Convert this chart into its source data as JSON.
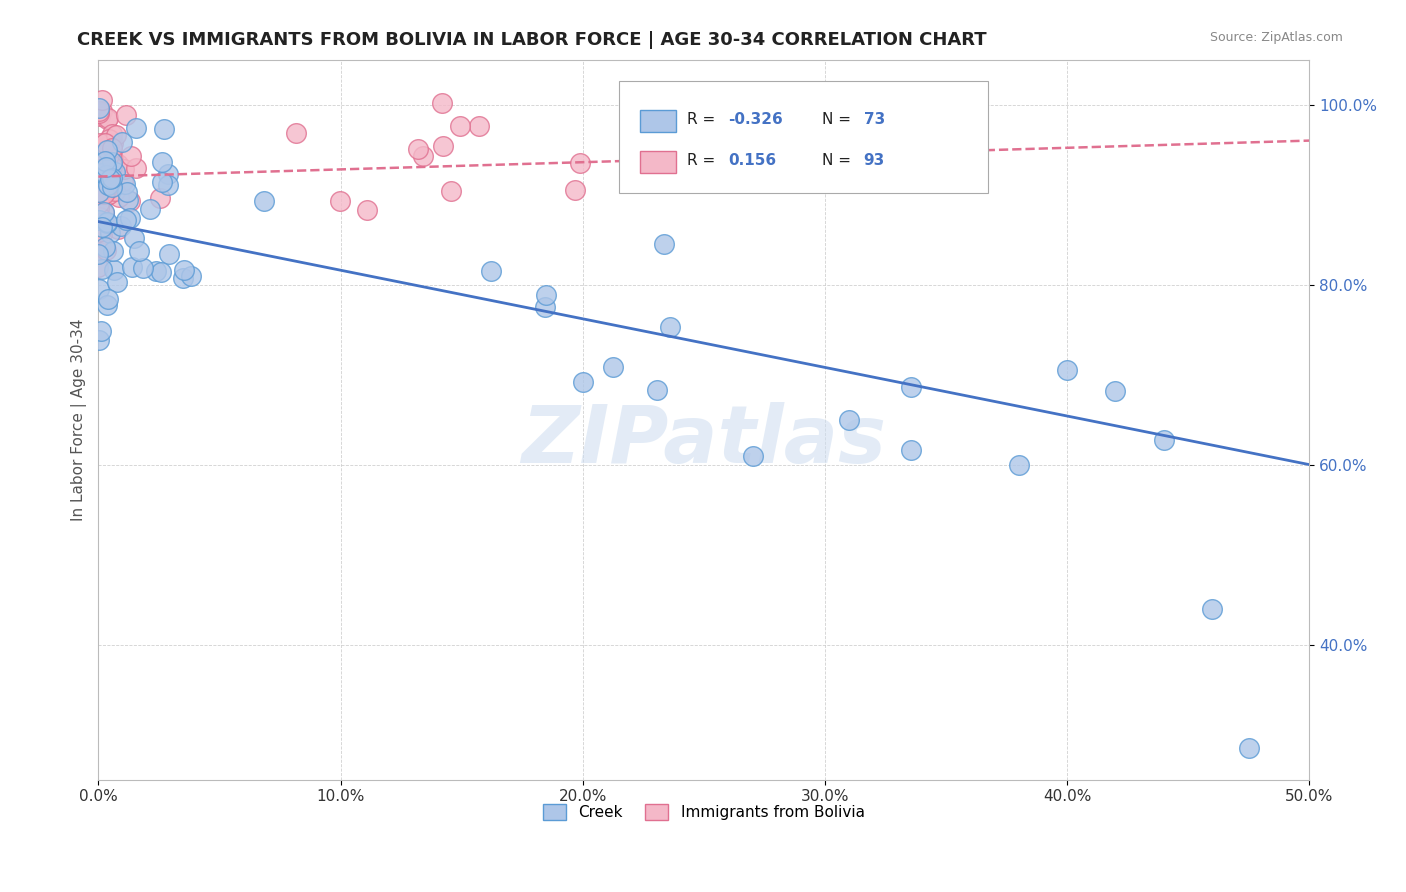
{
  "title": "CREEK VS IMMIGRANTS FROM BOLIVIA IN LABOR FORCE | AGE 30-34 CORRELATION CHART",
  "source": "Source: ZipAtlas.com",
  "ylabel": "In Labor Force | Age 30-34",
  "xlim": [
    0.0,
    0.5
  ],
  "ylim": [
    0.25,
    1.05
  ],
  "xticks": [
    0.0,
    0.1,
    0.2,
    0.3,
    0.4,
    0.5
  ],
  "xticklabels": [
    "0.0%",
    "10.0%",
    "20.0%",
    "30.0%",
    "40.0%",
    "50.0%"
  ],
  "yticks": [
    0.4,
    0.6,
    0.8,
    1.0
  ],
  "yticklabels": [
    "40.0%",
    "60.0%",
    "80.0%",
    "100.0%"
  ],
  "creek_color": "#aec6e8",
  "creek_edge_color": "#5b9bd5",
  "bolivia_color": "#f4b8c8",
  "bolivia_edge_color": "#e07090",
  "creek_R": -0.326,
  "creek_N": 73,
  "bolivia_R": 0.156,
  "bolivia_N": 93,
  "creek_line_color": "#4472c4",
  "bolivia_line_color": "#e07090",
  "creek_line_y0": 0.87,
  "creek_line_y1": 0.6,
  "bolivia_line_y0": 0.92,
  "bolivia_line_y1": 0.96,
  "watermark": "ZIPatlas",
  "legend_creek": "Creek",
  "legend_bolivia": "Immigrants from Bolivia",
  "title_color": "#222222",
  "source_color": "#888888",
  "ylabel_color": "#555555",
  "ytick_color": "#4472c4",
  "xtick_color": "#333333"
}
